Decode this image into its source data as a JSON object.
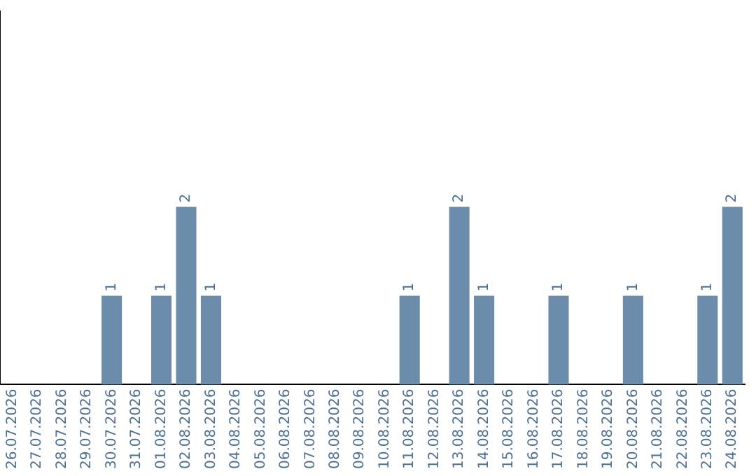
{
  "chart_data": {
    "type": "bar",
    "categories": [
      "26.07.2026",
      "27.07.2026",
      "28.07.2026",
      "29.07.2026",
      "30.07.2026",
      "31.07.2026",
      "01.08.2026",
      "02.08.2026",
      "03.08.2026",
      "04.08.2026",
      "05.08.2026",
      "06.08.2026",
      "07.08.2026",
      "08.08.2026",
      "09.08.2026",
      "10.08.2026",
      "11.08.2026",
      "12.08.2026",
      "13.08.2026",
      "14.08.2026",
      "15.08.2026",
      "16.08.2026",
      "17.08.2026",
      "18.08.2026",
      "19.08.2026",
      "20.08.2026",
      "21.08.2026",
      "22.08.2026",
      "23.08.2026",
      "24.08.2026"
    ],
    "values": [
      0,
      0,
      0,
      0,
      1,
      0,
      1,
      2,
      1,
      0,
      0,
      0,
      0,
      0,
      0,
      0,
      1,
      0,
      2,
      1,
      0,
      0,
      1,
      0,
      0,
      1,
      0,
      0,
      1,
      2
    ],
    "value_labels": [
      null,
      null,
      null,
      null,
      "1",
      null,
      "1",
      "2",
      "1",
      null,
      null,
      null,
      null,
      null,
      null,
      null,
      "1",
      null,
      "2",
      "1",
      null,
      null,
      "1",
      null,
      null,
      "1",
      null,
      null,
      "1",
      "2"
    ],
    "color": "#6b8cab",
    "ylim": [
      0,
      4.2
    ],
    "tick_labels": "x",
    "grid": false,
    "legend": false
  }
}
